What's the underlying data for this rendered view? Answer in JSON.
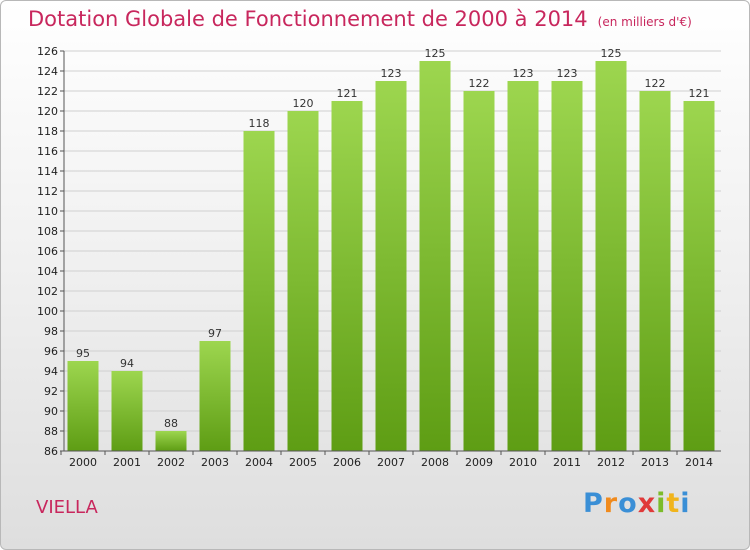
{
  "header": {
    "title": "Dotation Globale de Fonctionnement de 2000 à 2014",
    "subtitle": "(en milliers d'€)"
  },
  "footer": {
    "commune": "VIELLA",
    "logo_text": "Proxiti"
  },
  "colors": {
    "title": "#c8275d",
    "bar_top": "#9dd64f",
    "bar_bottom": "#5e9d14",
    "grid": "#d0d0d0"
  },
  "chart_data": {
    "type": "bar",
    "title": "Dotation Globale de Fonctionnement de 2000 à 2014",
    "subtitle": "(en milliers d'€)",
    "categories": [
      "2000",
      "2001",
      "2002",
      "2003",
      "2004",
      "2005",
      "2006",
      "2007",
      "2008",
      "2009",
      "2010",
      "2011",
      "2012",
      "2013",
      "2014"
    ],
    "values": [
      95,
      94,
      88,
      97,
      118,
      120,
      121,
      123,
      125,
      122,
      123,
      123,
      125,
      122,
      121
    ],
    "ylim": [
      86,
      126
    ],
    "yticks": [
      86,
      88,
      90,
      92,
      94,
      96,
      98,
      100,
      102,
      104,
      106,
      108,
      110,
      112,
      114,
      116,
      118,
      120,
      122,
      124,
      126
    ],
    "xlabel": "",
    "ylabel": "",
    "grid": true,
    "legend": "none"
  }
}
